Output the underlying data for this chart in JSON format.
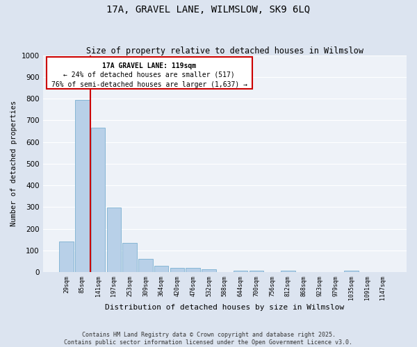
{
  "title": "17A, GRAVEL LANE, WILMSLOW, SK9 6LQ",
  "subtitle": "Size of property relative to detached houses in Wilmslow",
  "xlabel": "Distribution of detached houses by size in Wilmslow",
  "ylabel": "Number of detached properties",
  "bar_color": "#b8d0e8",
  "bar_edge_color": "#7aafd0",
  "background_color": "#eef2f8",
  "fig_background_color": "#dce4f0",
  "grid_color": "#ffffff",
  "categories": [
    "29sqm",
    "85sqm",
    "141sqm",
    "197sqm",
    "253sqm",
    "309sqm",
    "364sqm",
    "420sqm",
    "476sqm",
    "532sqm",
    "588sqm",
    "644sqm",
    "700sqm",
    "756sqm",
    "812sqm",
    "868sqm",
    "923sqm",
    "979sqm",
    "1035sqm",
    "1091sqm",
    "1147sqm"
  ],
  "values": [
    140,
    795,
    665,
    298,
    135,
    60,
    30,
    18,
    18,
    12,
    0,
    8,
    8,
    0,
    8,
    0,
    0,
    0,
    8,
    0,
    0
  ],
  "ylim": [
    0,
    1000
  ],
  "yticks": [
    0,
    100,
    200,
    300,
    400,
    500,
    600,
    700,
    800,
    900,
    1000
  ],
  "property_size": 119,
  "property_label": "17A GRAVEL LANE: 119sqm",
  "annotation_line1": "← 24% of detached houses are smaller (517)",
  "annotation_line2": "76% of semi-detached houses are larger (1,637) →",
  "red_line_color": "#cc0000",
  "annotation_box_color": "#cc0000",
  "footer_line1": "Contains HM Land Registry data © Crown copyright and database right 2025.",
  "footer_line2": "Contains public sector information licensed under the Open Government Licence v3.0.",
  "figsize": [
    6.0,
    5.0
  ],
  "dpi": 100
}
